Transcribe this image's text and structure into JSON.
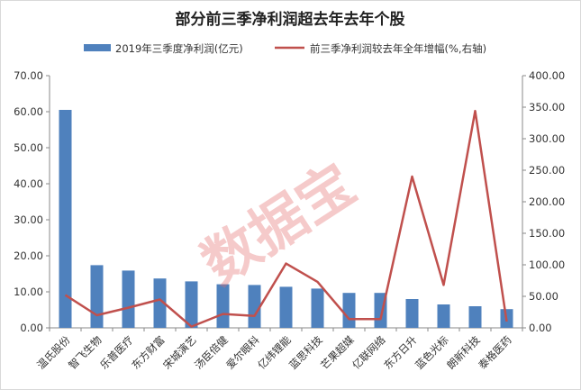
{
  "chart_data": {
    "type": "bar+line",
    "title": "部分前三季净利润超去年去年个股",
    "watermark": "数据宝",
    "categories": [
      "温氏股份",
      "智飞生物",
      "乐普医疗",
      "东方财富",
      "宋城演艺",
      "汤臣倍健",
      "爱尔眼科",
      "亿纬锂能",
      "蓝思科技",
      "芒果超媒",
      "亿联网络",
      "东方日升",
      "蓝色光标",
      "朗新科技",
      "泰格医药"
    ],
    "series": [
      {
        "name": "2019年三季度净利润(亿元)",
        "kind": "bar",
        "axis": "left",
        "color": "#4f81bd",
        "values": [
          60.5,
          17.4,
          15.9,
          13.7,
          12.9,
          12.1,
          11.9,
          11.4,
          10.9,
          9.7,
          9.7,
          8.0,
          6.5,
          6.0,
          5.2
        ]
      },
      {
        "name": "前三季净利润较去年全年增幅(%,右轴)",
        "kind": "line",
        "axis": "right",
        "color": "#c0504d",
        "values": [
          52,
          20,
          32,
          45,
          2,
          22,
          19,
          102,
          73,
          14,
          14,
          240,
          68,
          344,
          10
        ]
      }
    ],
    "y_left": {
      "min": 0,
      "max": 70,
      "ticks": [
        "0.00",
        "10.00",
        "20.00",
        "30.00",
        "40.00",
        "50.00",
        "60.00",
        "70.00"
      ]
    },
    "y_right": {
      "min": 0,
      "max": 400,
      "ticks": [
        "0.00",
        "50.00",
        "100.00",
        "150.00",
        "200.00",
        "250.00",
        "300.00",
        "350.00",
        "400.00"
      ]
    },
    "legend_position": "top",
    "grid": false
  }
}
